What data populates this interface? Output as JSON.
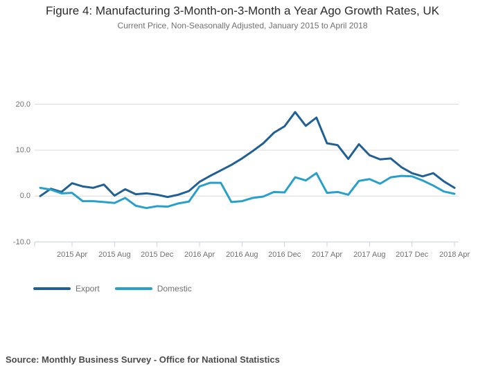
{
  "header": {
    "title": "Figure 4: Manufacturing 3-Month-on-3-Month a Year Ago Growth Rates, UK",
    "subtitle": "Current Price, Non-Seasonally Adjusted, January 2015 to April 2018"
  },
  "chart_data": {
    "type": "line",
    "title": "Figure 4: Manufacturing 3-Month-on-3-Month a Year Ago Growth Rates, UK",
    "subtitle": "Current Price, Non-Seasonally Adjusted, January 2015 to April 2018",
    "categories": [
      "2015 Jan",
      "2015 Feb",
      "2015 Mar",
      "2015 Apr",
      "2015 May",
      "2015 Jun",
      "2015 Jul",
      "2015 Aug",
      "2015 Sep",
      "2015 Oct",
      "2015 Nov",
      "2015 Dec",
      "2016 Jan",
      "2016 Feb",
      "2016 Mar",
      "2016 Apr",
      "2016 May",
      "2016 Jun",
      "2016 Jul",
      "2016 Aug",
      "2016 Sep",
      "2016 Oct",
      "2016 Nov",
      "2016 Dec",
      "2017 Jan",
      "2017 Feb",
      "2017 Mar",
      "2017 Apr",
      "2017 May",
      "2017 Jun",
      "2017 Jul",
      "2017 Aug",
      "2017 Sep",
      "2017 Oct",
      "2017 Nov",
      "2017 Dec",
      "2018 Jan",
      "2018 Feb",
      "2018 Mar",
      "2018 Apr"
    ],
    "series": [
      {
        "name": "Export",
        "color": "#206095",
        "values": [
          0.0,
          1.6,
          0.9,
          2.8,
          2.1,
          1.8,
          2.5,
          0.1,
          1.5,
          0.4,
          0.6,
          0.3,
          -0.2,
          0.3,
          1.1,
          3.1,
          4.4,
          5.6,
          6.8,
          8.2,
          9.8,
          11.5,
          13.8,
          15.2,
          18.3,
          15.3,
          17.1,
          11.5,
          11.1,
          8.1,
          11.3,
          8.9,
          8.0,
          8.2,
          6.3,
          5.0,
          4.3,
          5.0,
          3.2,
          1.8
        ]
      },
      {
        "name": "Domestic",
        "color": "#27A0CC",
        "values": [
          1.8,
          1.4,
          0.6,
          0.7,
          -1.1,
          -1.1,
          -1.3,
          -1.5,
          -0.4,
          -2.1,
          -2.6,
          -2.2,
          -2.3,
          -1.6,
          -1.2,
          2.1,
          2.9,
          2.9,
          -1.3,
          -1.1,
          -0.4,
          -0.1,
          0.9,
          0.8,
          4.1,
          3.4,
          5.0,
          0.7,
          0.9,
          0.3,
          3.3,
          3.7,
          2.7,
          4.1,
          4.4,
          4.3,
          3.4,
          2.3,
          1.0,
          0.5
        ]
      }
    ],
    "ylim": [
      -10.0,
      20.0
    ],
    "yticks": [
      20.0,
      10.0,
      0.0,
      -10.0
    ],
    "ytick_labels": [
      "20.0",
      "10.0",
      "0.0",
      "-10.0"
    ],
    "xtick_indices": [
      3,
      7,
      11,
      15,
      19,
      23,
      27,
      31,
      35,
      39
    ],
    "xtick_labels": [
      "2015 Apr",
      "2015 Aug",
      "2015 Dec",
      "2016 Apr",
      "2016 Aug",
      "2016 Dec",
      "2017 Apr",
      "2017 Aug",
      "2017 Dec",
      "2018 Apr"
    ],
    "grid": "horizontal",
    "gridline_color": "#d9d9d9",
    "axis_line_color": "#c6d1da",
    "legend_position": "bottom-left"
  },
  "legend": {
    "export_label": "Export",
    "domestic_label": "Domestic"
  },
  "source": {
    "text": "Source: Monthly Business Survey - Office for National Statistics"
  }
}
